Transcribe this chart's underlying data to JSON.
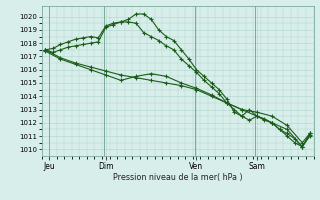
{
  "background_color": "#d8eeea",
  "grid_color": "#b0d4cc",
  "line_color": "#1a5c1a",
  "title": "Pression niveau de la mer( hPa )",
  "ylim": [
    1009.5,
    1020.8
  ],
  "yticks": [
    1010,
    1011,
    1012,
    1013,
    1014,
    1015,
    1016,
    1017,
    1018,
    1019,
    1020
  ],
  "day_labels": [
    "Jeu",
    "Dim",
    "Ven",
    "Sam"
  ],
  "day_positions": [
    0.5,
    8,
    20,
    28
  ],
  "xlim": [
    -0.5,
    35.5
  ],
  "vline_positions": [
    0.5,
    7.8,
    19.8,
    27.8
  ],
  "line1_x": [
    0,
    1,
    2,
    3,
    4,
    5,
    6,
    7,
    8,
    9,
    10,
    11,
    12,
    13,
    14,
    15,
    16,
    17,
    18,
    19,
    20,
    21,
    22,
    23,
    24,
    25,
    26,
    27,
    28,
    29,
    30,
    31,
    32,
    33,
    34,
    35
  ],
  "line1_y": [
    1017.5,
    1017.6,
    1017.9,
    1018.1,
    1018.3,
    1018.4,
    1018.5,
    1018.4,
    1019.3,
    1019.5,
    1019.6,
    1019.6,
    1019.5,
    1018.8,
    1018.5,
    1018.2,
    1017.8,
    1017.5,
    1016.8,
    1016.3,
    1015.8,
    1015.2,
    1014.7,
    1014.2,
    1013.5,
    1013.0,
    1012.5,
    1012.2,
    1012.5,
    1012.2,
    1012.0,
    1011.5,
    1011.0,
    1010.5,
    1010.2,
    1011.2
  ],
  "line2_x": [
    0,
    1,
    2,
    3,
    4,
    5,
    6,
    7,
    8,
    9,
    10,
    11,
    12,
    13,
    14,
    15,
    16,
    17,
    18,
    19,
    20,
    21,
    22,
    23,
    24,
    25,
    26,
    27,
    28,
    29,
    30,
    31,
    32,
    33,
    34,
    35
  ],
  "line2_y": [
    1017.5,
    1017.3,
    1017.5,
    1017.7,
    1017.8,
    1017.9,
    1018.0,
    1018.1,
    1019.2,
    1019.4,
    1019.6,
    1019.8,
    1020.2,
    1020.2,
    1019.8,
    1019.0,
    1018.5,
    1018.2,
    1017.5,
    1016.8,
    1016.0,
    1015.5,
    1015.0,
    1014.5,
    1013.8,
    1012.8,
    1012.5,
    1013.0,
    1012.5,
    1012.3,
    1012.0,
    1011.5,
    1011.2,
    1010.8,
    1010.2,
    1011.1
  ],
  "line3_x": [
    0,
    2,
    4,
    6,
    8,
    10,
    12,
    14,
    16,
    18,
    20,
    22,
    24,
    26,
    28,
    30,
    32,
    34,
    35
  ],
  "line3_y": [
    1017.5,
    1016.9,
    1016.5,
    1016.2,
    1015.9,
    1015.6,
    1015.4,
    1015.2,
    1015.0,
    1014.8,
    1014.5,
    1014.0,
    1013.5,
    1013.0,
    1012.5,
    1012.0,
    1011.5,
    1010.2,
    1011.0
  ],
  "line4_x": [
    0,
    2,
    4,
    6,
    8,
    10,
    12,
    14,
    16,
    18,
    20,
    22,
    24,
    26,
    28,
    30,
    32,
    34,
    35
  ],
  "line4_y": [
    1017.4,
    1016.8,
    1016.4,
    1016.0,
    1015.6,
    1015.2,
    1015.5,
    1015.7,
    1015.5,
    1015.0,
    1014.6,
    1014.1,
    1013.5,
    1013.0,
    1012.8,
    1012.5,
    1011.8,
    1010.5,
    1011.2
  ]
}
